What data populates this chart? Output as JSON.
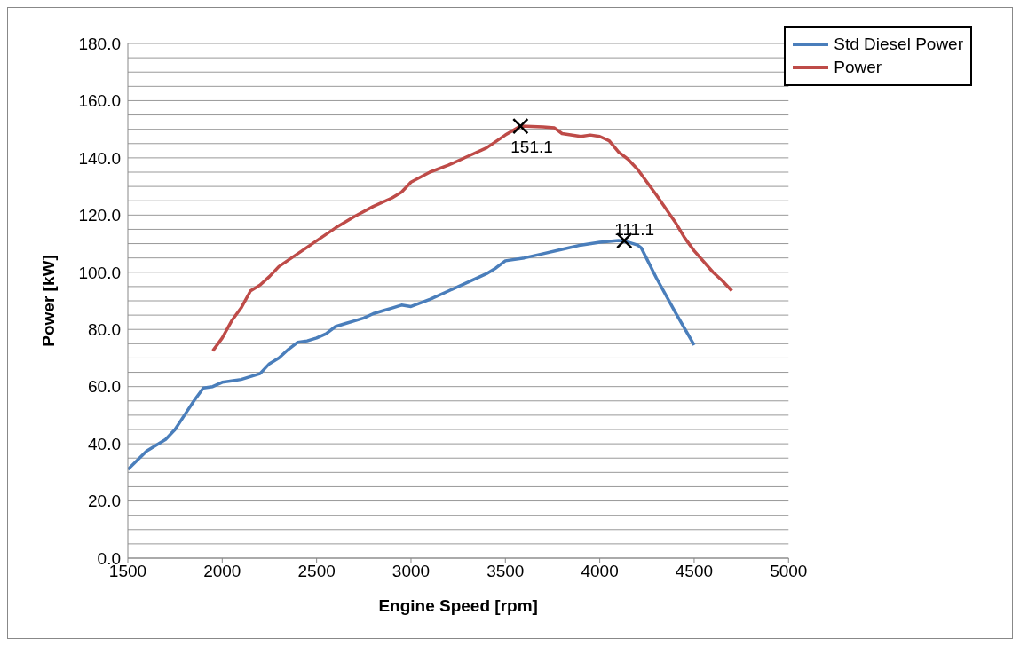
{
  "chart_data": {
    "type": "line",
    "xlabel": "Engine Speed [rpm]",
    "ylabel": "Power [kW]",
    "xlim": [
      1500,
      5000
    ],
    "xticks": [
      1500,
      2000,
      2500,
      3000,
      3500,
      4000,
      4500,
      5000
    ],
    "ylim": [
      0,
      180
    ],
    "yticks": [
      {
        "value": 0,
        "label": "0.0"
      },
      {
        "value": 5,
        "label": null
      },
      {
        "value": 10,
        "label": null
      },
      {
        "value": 15,
        "label": null
      },
      {
        "value": 20,
        "label": "20.0"
      },
      {
        "value": 25,
        "label": null
      },
      {
        "value": 30,
        "label": null
      },
      {
        "value": 35,
        "label": null
      },
      {
        "value": 40,
        "label": "40.0"
      },
      {
        "value": 45,
        "label": null
      },
      {
        "value": 50,
        "label": null
      },
      {
        "value": 55,
        "label": null
      },
      {
        "value": 60,
        "label": "60.0"
      },
      {
        "value": 65,
        "label": null
      },
      {
        "value": 70,
        "label": null
      },
      {
        "value": 75,
        "label": null
      },
      {
        "value": 80,
        "label": "80.0"
      },
      {
        "value": 85,
        "label": null
      },
      {
        "value": 90,
        "label": null
      },
      {
        "value": 95,
        "label": null
      },
      {
        "value": 100,
        "label": "100.0"
      },
      {
        "value": 105,
        "label": null
      },
      {
        "value": 110,
        "label": null
      },
      {
        "value": 115,
        "label": null
      },
      {
        "value": 120,
        "label": "120.0"
      },
      {
        "value": 125,
        "label": null
      },
      {
        "value": 130,
        "label": null
      },
      {
        "value": 135,
        "label": null
      },
      {
        "value": 140,
        "label": "140.0"
      },
      {
        "value": 145,
        "label": null
      },
      {
        "value": 150,
        "label": null
      },
      {
        "value": 155,
        "label": null
      },
      {
        "value": 160,
        "label": "160.0"
      },
      {
        "value": 165,
        "label": null
      },
      {
        "value": 170,
        "label": null
      },
      {
        "value": 175,
        "label": null
      },
      {
        "value": 180,
        "label": "180.0"
      }
    ],
    "grid": "y",
    "legend": "top right",
    "marker": "none",
    "line_style": "solid",
    "series": [
      {
        "name": "Std Diesel Power",
        "color": "#4a7ebb",
        "x": [
          1500,
          1600,
          1700,
          1750,
          1800,
          1850,
          1900,
          1950,
          2000,
          2050,
          2100,
          2150,
          2200,
          2250,
          2300,
          2350,
          2400,
          2450,
          2500,
          2550,
          2600,
          2650,
          2700,
          2750,
          2800,
          2850,
          2900,
          2950,
          3000,
          3100,
          3200,
          3300,
          3400,
          3450,
          3500,
          3600,
          3700,
          3800,
          3900,
          4000,
          4100,
          4150,
          4200,
          4220,
          4300,
          4400,
          4500
        ],
        "values": [
          31,
          37.5,
          41.5,
          45,
          50,
          55,
          59.5,
          60,
          61.5,
          62,
          62.5,
          63.5,
          64.5,
          68,
          70,
          73,
          75.5,
          76,
          77,
          78.5,
          81,
          82,
          83,
          84,
          85.5,
          86.5,
          87.5,
          88.5,
          88,
          90.5,
          93.5,
          96.5,
          99.5,
          101.5,
          104,
          105,
          106.5,
          108,
          109.5,
          110.5,
          111.1,
          110.5,
          109.5,
          108.5,
          98,
          86,
          74.5
        ]
      },
      {
        "name": "Power",
        "color": "#be4b48",
        "x": [
          1950,
          2000,
          2050,
          2100,
          2150,
          2200,
          2250,
          2300,
          2400,
          2500,
          2600,
          2700,
          2800,
          2900,
          2950,
          3000,
          3100,
          3200,
          3300,
          3400,
          3500,
          3580,
          3700,
          3760,
          3800,
          3900,
          3950,
          4000,
          4050,
          4100,
          4150,
          4200,
          4300,
          4400,
          4450,
          4500,
          4600,
          4650,
          4700
        ],
        "values": [
          72.5,
          77,
          83,
          87.5,
          93.5,
          95.5,
          98.5,
          102,
          106.5,
          111,
          115.5,
          119.5,
          123,
          126,
          128,
          131.5,
          135,
          137.5,
          140.5,
          143.5,
          148,
          151.1,
          150.8,
          150.5,
          148.5,
          147.5,
          148,
          147.5,
          146,
          142,
          139.5,
          136,
          127,
          117.5,
          112,
          107.5,
          100,
          97,
          93.5
        ]
      }
    ],
    "annotations": [
      {
        "text": "151.1",
        "x": 3580,
        "y": 151.1
      },
      {
        "text": "111.1",
        "x": 4130,
        "y": 111.1
      }
    ]
  }
}
